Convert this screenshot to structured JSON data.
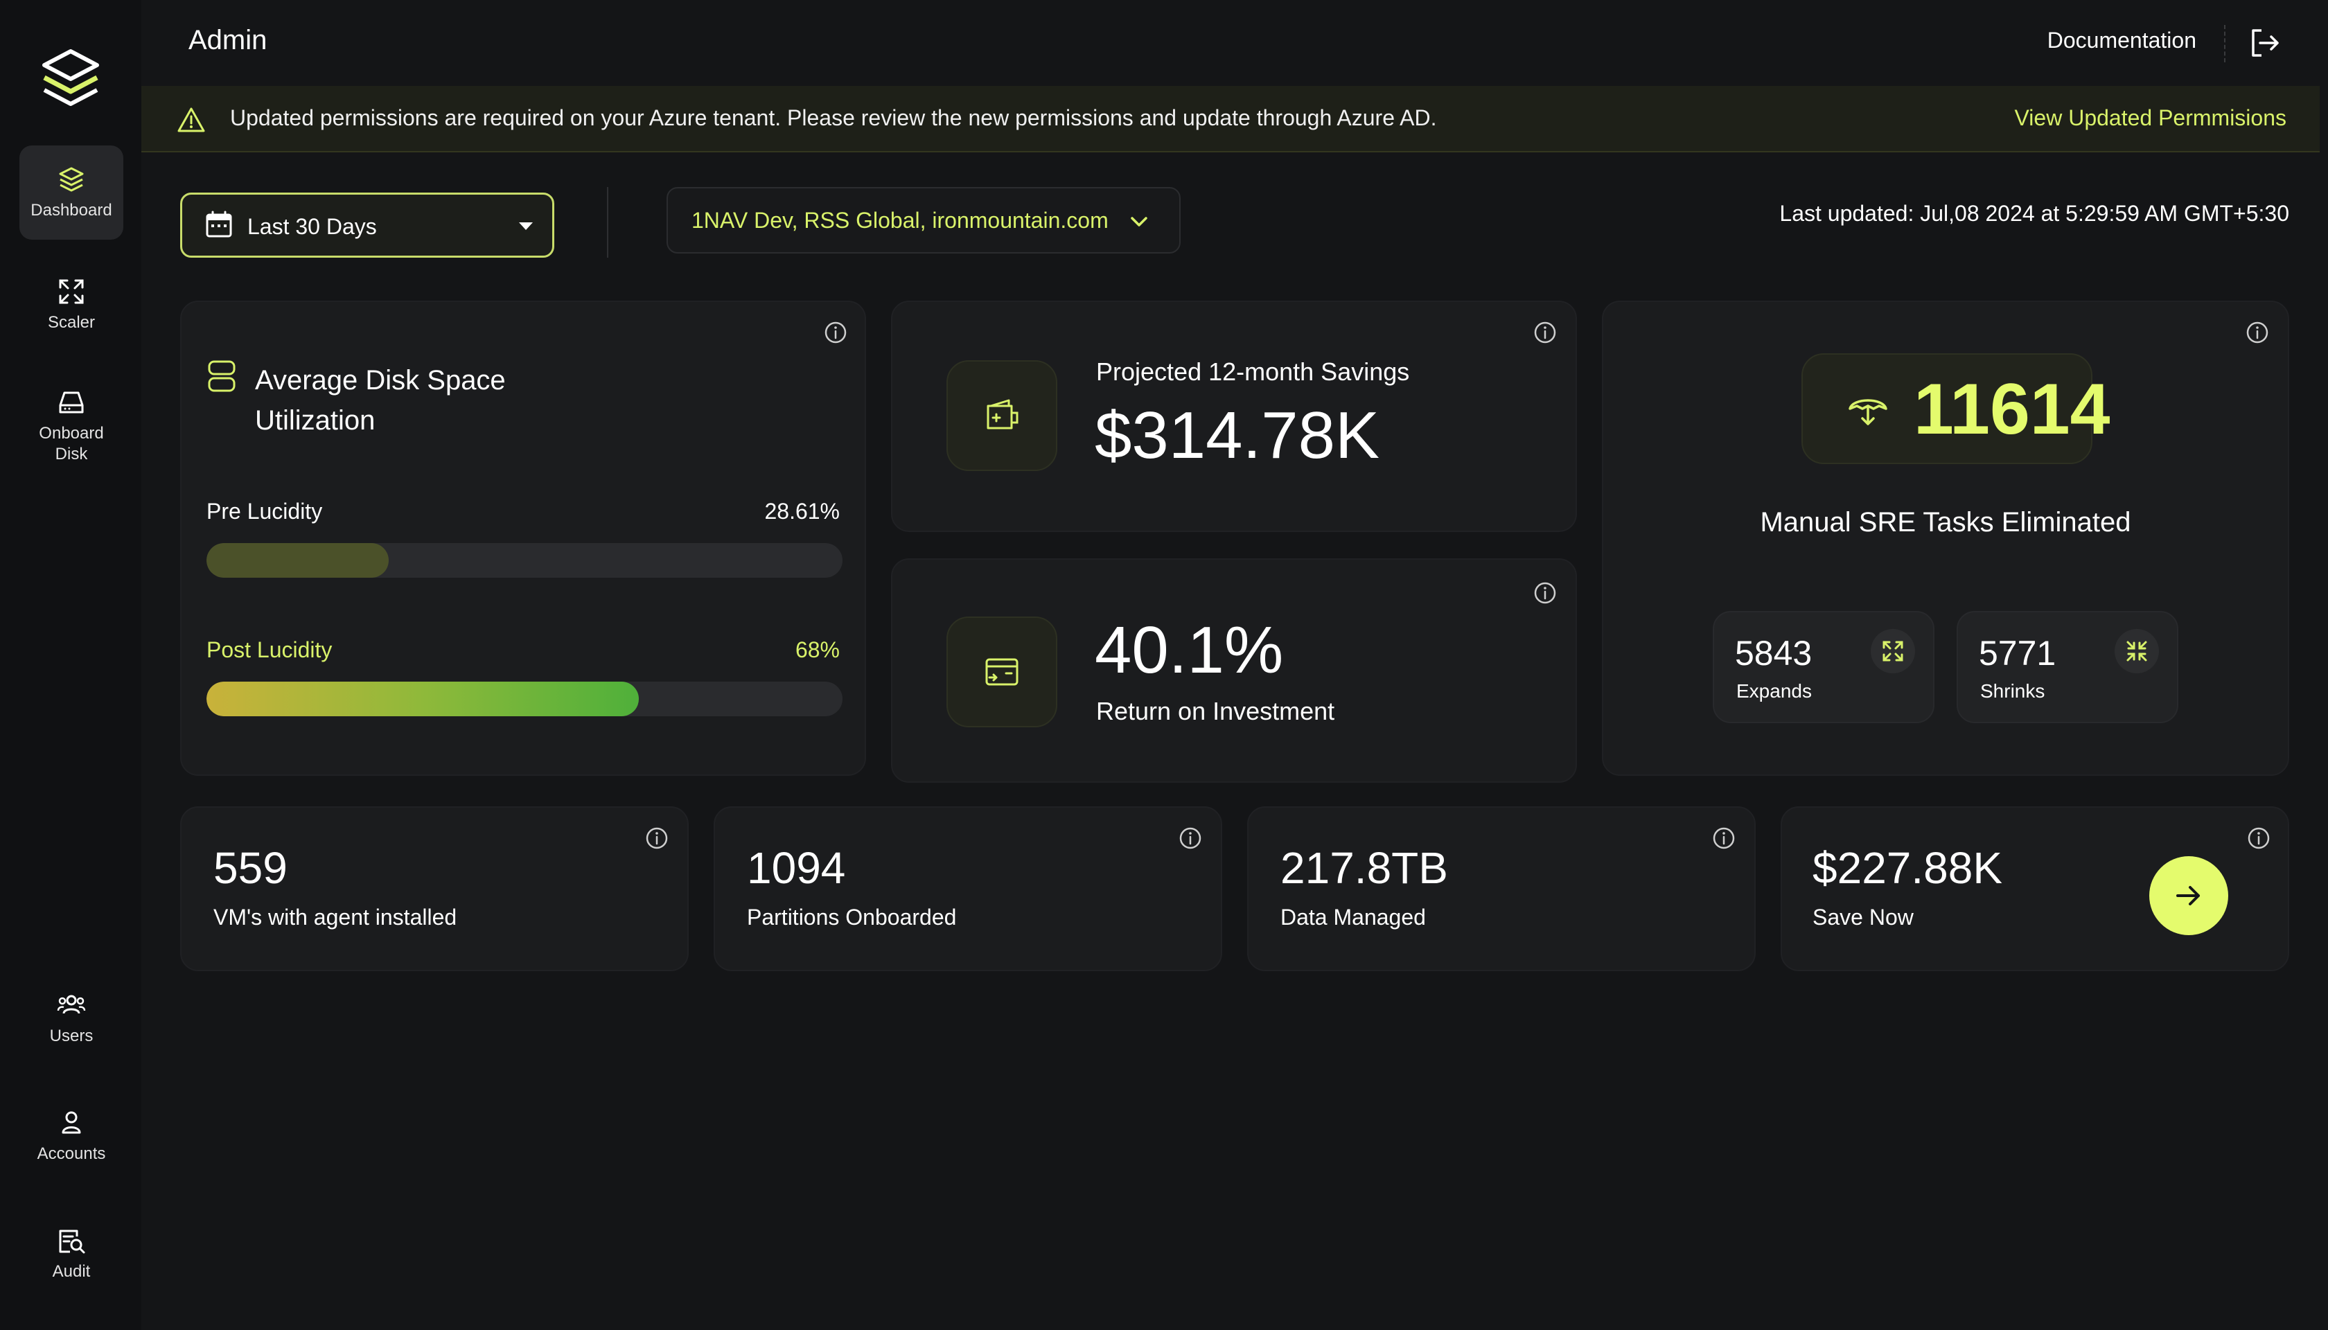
{
  "sidebar": {
    "items": [
      {
        "label": "Dashboard",
        "icon": "layers-icon"
      },
      {
        "label": "Scaler",
        "icon": "expand-arrows-icon"
      },
      {
        "label": "Onboard Disk",
        "icon": "hard-drive-icon"
      },
      {
        "label": "Users",
        "icon": "users-icon"
      },
      {
        "label": "Accounts",
        "icon": "user-icon"
      },
      {
        "label": "Audit",
        "icon": "audit-search-icon"
      }
    ],
    "active": "Dashboard"
  },
  "header": {
    "title": "Admin",
    "documentation_label": "Documentation",
    "logout_icon": "logout-icon"
  },
  "banner": {
    "message": "Updated permissions are required on your Azure tenant. Please review the new permissions and update through Azure AD.",
    "link_label": "View Updated Permmisions",
    "icon": "warning-icon"
  },
  "filters": {
    "date_range": "Last 30 Days",
    "tenants": "1NAV Dev, RSS Global, ironmountain.com",
    "last_updated": "Last updated: Jul,08 2024 at 5:29:59 AM GMT+5:30"
  },
  "disk_utilization": {
    "title_line1": "Average Disk Space",
    "title_line2": "Utilization",
    "pre_label": "Pre Lucidity",
    "pre_value": "28.61%",
    "pre_fraction": 0.2861,
    "post_label": "Post Lucidity",
    "post_value": "68%",
    "post_fraction": 0.68
  },
  "savings": {
    "label": "Projected 12-month Savings",
    "value": "$314.78K"
  },
  "roi": {
    "value": "40.1%",
    "label": "Return on Investment"
  },
  "sre": {
    "value": "11614",
    "label": "Manual SRE Tasks Eliminated",
    "expands_value": "5843",
    "expands_label": "Expands",
    "shrinks_value": "5771",
    "shrinks_label": "Shrinks"
  },
  "stats": [
    {
      "value": "559",
      "label": "VM's with agent installed"
    },
    {
      "value": "1094",
      "label": "Partitions Onboarded"
    },
    {
      "value": "217.8TB",
      "label": "Data Managed"
    },
    {
      "value": "$227.88K",
      "label": "Save Now"
    }
  ],
  "colors": {
    "accent": "#d9f26a",
    "button": "#e4fb6d",
    "background": "#141517",
    "card": "#1b1c1e"
  }
}
